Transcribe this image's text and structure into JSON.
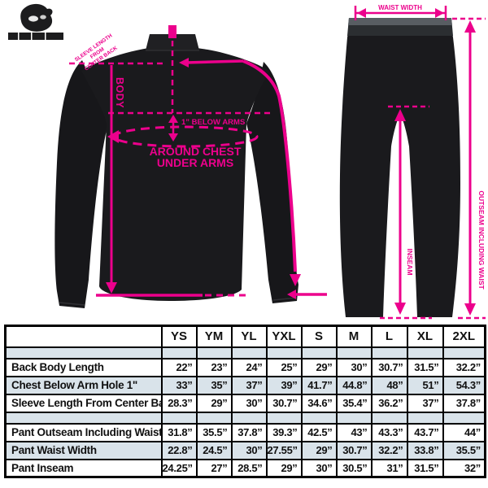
{
  "diagram": {
    "accent_color": "#EC008C",
    "garment_color": "#1a1a1c",
    "jacket": {
      "labels": {
        "body": "BODY",
        "below_arms": "1” BELOW ARMS",
        "around_chest_line1": "AROUND CHEST",
        "around_chest_line2": "UNDER ARMS",
        "sleeve_note_line1": "SLEEVE LENGTH",
        "sleeve_note_line2": "FROM",
        "sleeve_note_line3": "CENTER BACK"
      }
    },
    "pants": {
      "labels": {
        "waist": "WAIST WIDTH",
        "outseam": "OUTSEAM INCLUDING WAIST",
        "inseam": "INSEAM"
      }
    }
  },
  "size_chart": {
    "columns": [
      "",
      "YS",
      "YM",
      "YL",
      "YXL",
      "S",
      "M",
      "L",
      "XL",
      "2XL"
    ],
    "rows": [
      {
        "label": "Back Body Length",
        "values": [
          "22”",
          "23”",
          "24”",
          "25”",
          "29”",
          "30”",
          "30.7”",
          "31.5”",
          "32.2”"
        ]
      },
      {
        "label": "Chest Below Arm Hole 1\"",
        "values": [
          "33”",
          "35”",
          "37”",
          "39”",
          "41.7”",
          "44.8”",
          "48”",
          "51”",
          "54.3”"
        ]
      },
      {
        "label": "Sleeve Length From Center Back",
        "values": [
          "28.3”",
          "29”",
          "30”",
          "30.7”",
          "34.6”",
          "35.4”",
          "36.2”",
          "37”",
          "37.8”"
        ]
      },
      {
        "label": "Pant Outseam Including Waist",
        "values": [
          "31.8”",
          "35.5”",
          "37.8”",
          "39.3”",
          "42.5”",
          "43”",
          "43.3”",
          "43.7”",
          "44”"
        ]
      },
      {
        "label": "Pant Waist Width",
        "values": [
          "22.8”",
          "24.5”",
          "30”",
          "27.55”",
          "29”",
          "30.7”",
          "32.2”",
          "33.8”",
          "35.5”"
        ]
      },
      {
        "label": "Pant Inseam",
        "values": [
          "24.25”",
          "27”",
          "28.5”",
          "29”",
          "30”",
          "30.5”",
          "31”",
          "31.5”",
          "32”"
        ]
      }
    ]
  }
}
